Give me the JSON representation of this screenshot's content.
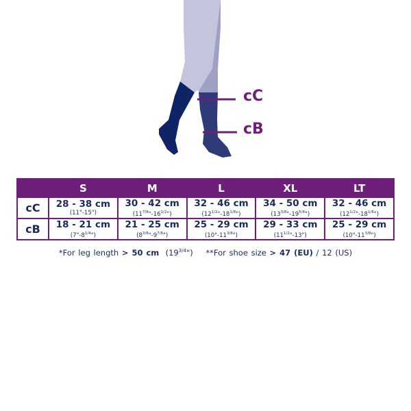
{
  "illustration": {
    "labels": {
      "upper": "cC",
      "lower": "cB"
    },
    "colors": {
      "leg_front": "#c3c5dd",
      "leg_back": "#9ea0c4",
      "sock_front": "#0e2464",
      "sock_back": "#2e3b78",
      "marker": "#6d1f7a"
    }
  },
  "table": {
    "headers": [
      "S",
      "M",
      "L",
      "XL",
      "LT"
    ],
    "rows": [
      {
        "label": "cC",
        "cells": [
          {
            "cm": "28 - 38 cm",
            "in": [
              {
                "t": "(11\"-15\")"
              }
            ]
          },
          {
            "cm": "30 - 42 cm",
            "in": [
              {
                "t": "(11"
              },
              {
                "s": "7/8"
              },
              {
                "t": "\"-16"
              },
              {
                "s": "1/2"
              },
              {
                "t": "\")"
              }
            ]
          },
          {
            "cm": "32 - 46 cm",
            "in": [
              {
                "t": "(12"
              },
              {
                "s": "1/2"
              },
              {
                "t": "\"-18"
              },
              {
                "s": "1/8"
              },
              {
                "t": "\")"
              }
            ]
          },
          {
            "cm": "34 - 50 cm",
            "in": [
              {
                "t": "(13"
              },
              {
                "s": "3/8"
              },
              {
                "t": "\"-19"
              },
              {
                "s": "5/8"
              },
              {
                "t": "\")"
              }
            ]
          },
          {
            "cm": "32 - 46 cm",
            "in": [
              {
                "t": "(12"
              },
              {
                "s": "1/2"
              },
              {
                "t": "\"-18"
              },
              {
                "s": "1/8"
              },
              {
                "t": "\")"
              }
            ]
          }
        ]
      },
      {
        "label": "cB",
        "cells": [
          {
            "cm": "18 - 21 cm",
            "in": [
              {
                "t": "(7\"-8"
              },
              {
                "s": "1/4"
              },
              {
                "t": "\")"
              }
            ]
          },
          {
            "cm": "21 - 25 cm",
            "in": [
              {
                "t": "(8"
              },
              {
                "s": "3/8"
              },
              {
                "t": "\"-9"
              },
              {
                "s": "7/8"
              },
              {
                "t": "\")"
              }
            ]
          },
          {
            "cm": "25 - 29 cm",
            "in": [
              {
                "t": "(10\"-11"
              },
              {
                "s": "3/8"
              },
              {
                "t": "\")"
              }
            ]
          },
          {
            "cm": "29 - 33 cm",
            "in": [
              {
                "t": "(11"
              },
              {
                "s": "1/2"
              },
              {
                "t": "\"-13\")"
              }
            ]
          },
          {
            "cm": "25 - 29 cm",
            "in": [
              {
                "t": "(10\"-11"
              },
              {
                "s": "3/8"
              },
              {
                "t": "\")"
              }
            ]
          }
        ]
      }
    ],
    "accent": "#6d1f7a"
  },
  "footnote": {
    "leg_prefix": "*For leg length ",
    "leg_value": "> 50 cm",
    "leg_inch": "(19",
    "leg_inch_sup": "3/4",
    "leg_inch_end": "\")",
    "shoe_prefix": "**For shoe size ",
    "shoe_value": "> 47 (EU)",
    "shoe_suffix": " / 12 (US)"
  }
}
